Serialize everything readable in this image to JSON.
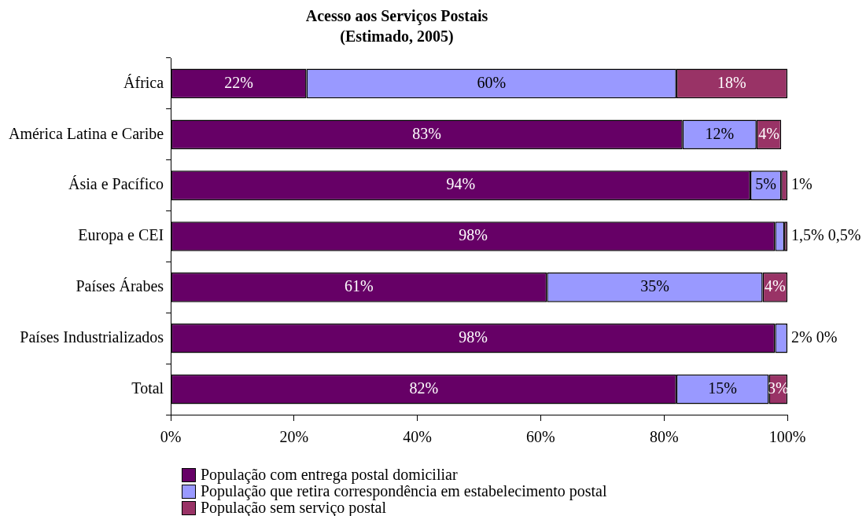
{
  "chart_data": {
    "type": "bar",
    "orientation": "horizontal",
    "stacked": true,
    "title": "Acesso aos Serviços Postais",
    "subtitle": "(Estimado, 2005)",
    "categories": [
      "África",
      "América Latina e Caribe",
      "Ásia e Pacífico",
      "Europa e CEI",
      "Países Árabes",
      "Países Industrializados",
      "Total"
    ],
    "series": [
      {
        "name": "População com entrega postal domiciliar",
        "color": "#660066",
        "values": [
          22,
          83,
          94,
          98,
          61,
          98,
          82
        ],
        "value_labels": [
          "22%",
          "83%",
          "94%",
          "98%",
          "61%",
          "98%",
          "82%"
        ]
      },
      {
        "name": "População que retira correspondência em estabelecimento postal",
        "color": "#9999ff",
        "values": [
          60,
          12,
          5,
          1.5,
          35,
          2,
          15
        ],
        "value_labels": [
          "60%",
          "12%",
          "5%",
          "1,5%",
          "35%",
          "2%",
          "15%"
        ]
      },
      {
        "name": "População sem serviço postal",
        "color": "#993366",
        "values": [
          18,
          4,
          1,
          0.5,
          4,
          0,
          3
        ],
        "value_labels": [
          "18%",
          "4%",
          "1%",
          "0,5%",
          "4%",
          "0%",
          "3%"
        ]
      }
    ],
    "xlim": [
      0,
      100
    ],
    "xticks": [
      {
        "value": 0,
        "label": "0%"
      },
      {
        "value": 20,
        "label": "20%"
      },
      {
        "value": 40,
        "label": "40%"
      },
      {
        "value": 60,
        "label": "60%"
      },
      {
        "value": 80,
        "label": "80%"
      },
      {
        "value": 100,
        "label": "100%"
      }
    ],
    "grid": false,
    "legend": "bottom left"
  }
}
